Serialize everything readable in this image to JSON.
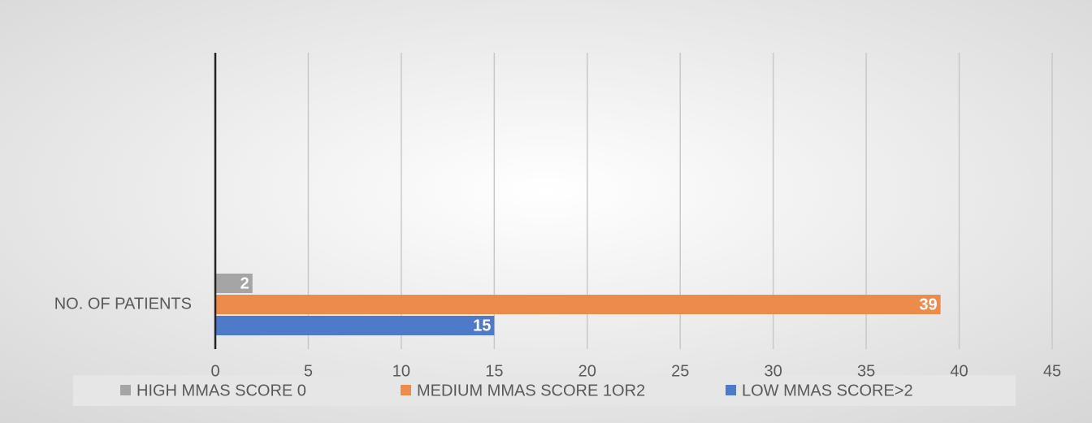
{
  "chart_data": {
    "type": "hbar",
    "categories": [
      "NO. OF PATIENTS"
    ],
    "series": [
      {
        "name": "HIGH MMAS SCORE 0",
        "color": "#a5a5a5",
        "values": [
          2
        ]
      },
      {
        "name": "MEDIUM MMAS SCORE 1OR2",
        "color": "#ed8b4d",
        "values": [
          39
        ]
      },
      {
        "name": "LOW MMAS SCORE>2",
        "color": "#4f79c9",
        "values": [
          15
        ]
      }
    ],
    "xlim": [
      0,
      45
    ],
    "xticks": [
      0,
      5,
      10,
      15,
      20,
      25,
      30,
      35,
      40,
      45
    ],
    "grid": true,
    "legend": "bottom"
  }
}
